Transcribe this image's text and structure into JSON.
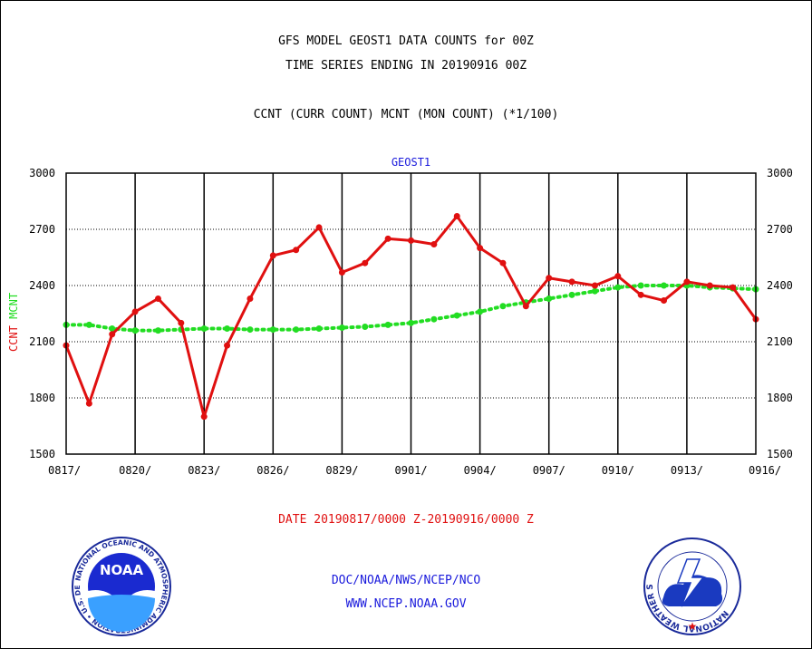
{
  "header": {
    "line1": "GFS MODEL GEOST1 DATA COUNTS for 00Z",
    "line2": "TIME SERIES ENDING IN 20190916 00Z",
    "line3": "CCNT (CURR COUNT) MCNT (MON COUNT) (*1/100)"
  },
  "footer": {
    "date_range": "DATE 20190817/0000 Z-20190916/0000 Z",
    "org_line": "DOC/NOAA/NWS/NCEP/NCO",
    "website": "WWW.NCEP.NOAA.GOV"
  },
  "logos": {
    "noaa_text": "NOAA",
    "noaa_ring": "NATIONAL OCEANIC AND ATMOSPHERIC ADMINISTRATION • U.S. DEPARTMENT OF COMMERCE •",
    "nws_ring": "NATIONAL WEATHER SERVICE"
  },
  "colors": {
    "ccnt": "#e01010",
    "mcnt": "#22dd22",
    "title_blue": "#1a1adc"
  },
  "chart_data": {
    "type": "line",
    "title": "GEOST1",
    "xlabel": "",
    "ylabel_left": [
      "CCNT",
      "MCNT"
    ],
    "ylim": [
      1500,
      3000
    ],
    "yticks": [
      1500,
      1800,
      2100,
      2400,
      2700,
      3000
    ],
    "grid": true,
    "x": [
      "0817",
      "0818",
      "0819",
      "0820",
      "0821",
      "0822",
      "0823",
      "0824",
      "0825",
      "0826",
      "0827",
      "0828",
      "0829",
      "0830",
      "0831",
      "0901",
      "0902",
      "0903",
      "0904",
      "0905",
      "0906",
      "0907",
      "0908",
      "0909",
      "0910",
      "0911",
      "0912",
      "0913",
      "0914",
      "0915",
      "0916"
    ],
    "xtick_labels": [
      "0817/",
      "0820/",
      "0823/",
      "0826/",
      "0829/",
      "0901/",
      "0904/",
      "0907/",
      "0910/",
      "0913/",
      "0916/"
    ],
    "series": [
      {
        "name": "CCNT",
        "values": [
          2080,
          1770,
          2140,
          2260,
          2330,
          2200,
          1700,
          2080,
          2330,
          2560,
          2590,
          2710,
          2470,
          2520,
          2650,
          2640,
          2620,
          2770,
          2600,
          2520,
          2290,
          2440,
          2420,
          2400,
          2450,
          2350,
          2320,
          2420,
          2400,
          2390,
          2220
        ]
      },
      {
        "name": "MCNT",
        "values": [
          2190,
          2190,
          2170,
          2160,
          2160,
          2165,
          2170,
          2170,
          2165,
          2165,
          2165,
          2170,
          2175,
          2180,
          2190,
          2200,
          2220,
          2240,
          2260,
          2290,
          2310,
          2330,
          2350,
          2370,
          2390,
          2400,
          2400,
          2400,
          2390,
          2385,
          2380
        ]
      }
    ]
  }
}
